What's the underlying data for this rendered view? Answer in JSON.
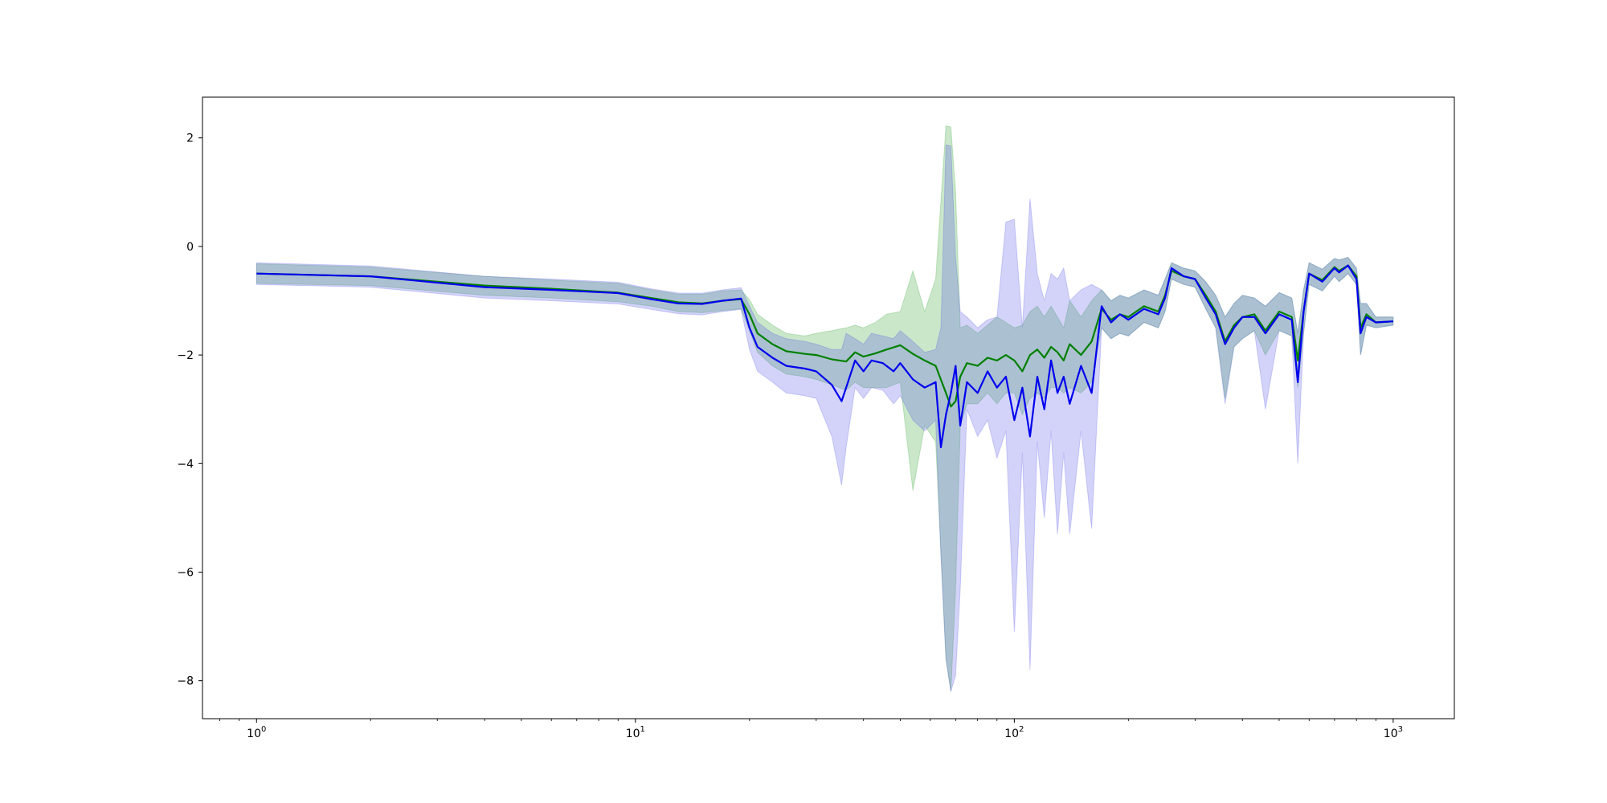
{
  "chart_data": {
    "type": "line",
    "title": "",
    "xlabel": "",
    "ylabel": "",
    "xscale": "log",
    "xlim": [
      0.72,
      1450
    ],
    "ylim": [
      -8.7,
      2.75
    ],
    "grid": false,
    "legend": "none",
    "xticks": [
      {
        "value": 1,
        "base": "10",
        "exp": "0"
      },
      {
        "value": 10,
        "base": "10",
        "exp": "1"
      },
      {
        "value": 100,
        "base": "10",
        "exp": "2"
      },
      {
        "value": 1000,
        "base": "10",
        "exp": "3"
      }
    ],
    "yticks": [
      {
        "value": 2,
        "label": "2"
      },
      {
        "value": 0,
        "label": "0"
      },
      {
        "value": -2,
        "label": "−2"
      },
      {
        "value": -4,
        "label": "−4"
      },
      {
        "value": -6,
        "label": "−6"
      },
      {
        "value": -8,
        "label": "−8"
      }
    ],
    "series": [
      {
        "color": "#008000",
        "band_color": "#2ca02c",
        "x": [
          1,
          2,
          4,
          6,
          9,
          11,
          13,
          15,
          17,
          19,
          20,
          21,
          23,
          25,
          28,
          30,
          33,
          36,
          38,
          40,
          43,
          46,
          50,
          54,
          58,
          62,
          66,
          68,
          70,
          72,
          75,
          80,
          85,
          90,
          95,
          100,
          105,
          110,
          115,
          120,
          125,
          130,
          135,
          140,
          150,
          160,
          170,
          180,
          190,
          200,
          220,
          240,
          250,
          260,
          280,
          300,
          320,
          340,
          360,
          380,
          400,
          430,
          460,
          500,
          540,
          560,
          580,
          600,
          650,
          700,
          720,
          760,
          800,
          820,
          850,
          900,
          1000
        ],
        "y": [
          -0.5,
          -0.55,
          -0.72,
          -0.78,
          -0.85,
          -0.95,
          -1.03,
          -1.05,
          -1.0,
          -0.97,
          -1.25,
          -1.6,
          -1.8,
          -1.93,
          -1.98,
          -2.0,
          -2.08,
          -2.12,
          -1.95,
          -2.03,
          -1.97,
          -1.9,
          -1.82,
          -1.98,
          -2.1,
          -2.2,
          -2.7,
          -2.95,
          -2.85,
          -2.4,
          -2.15,
          -2.2,
          -2.05,
          -2.1,
          -2.0,
          -2.1,
          -2.3,
          -2.0,
          -1.9,
          -2.05,
          -1.85,
          -1.95,
          -2.1,
          -1.8,
          -2.0,
          -1.75,
          -1.15,
          -1.35,
          -1.25,
          -1.3,
          -1.1,
          -1.2,
          -0.9,
          -0.45,
          -0.55,
          -0.6,
          -0.9,
          -1.2,
          -1.75,
          -1.45,
          -1.3,
          -1.25,
          -1.55,
          -1.2,
          -1.3,
          -2.1,
          -1.2,
          -0.5,
          -0.62,
          -0.38,
          -0.45,
          -0.35,
          -0.55,
          -1.5,
          -1.25,
          -1.4,
          -1.38
        ],
        "upper": [
          -0.32,
          -0.38,
          -0.55,
          -0.62,
          -0.68,
          -0.8,
          -0.88,
          -0.88,
          -0.82,
          -0.8,
          -0.98,
          -1.25,
          -1.45,
          -1.6,
          -1.65,
          -1.6,
          -1.55,
          -1.5,
          -1.45,
          -1.5,
          -1.4,
          -1.25,
          -1.2,
          -0.45,
          -1.2,
          -0.6,
          2.22,
          2.2,
          1.0,
          -1.5,
          -1.45,
          -1.6,
          -1.45,
          -1.3,
          -1.4,
          -1.5,
          -1.45,
          -1.2,
          -1.1,
          -1.3,
          -1.1,
          -1.3,
          -1.5,
          -1.0,
          -1.3,
          -1.0,
          -0.8,
          -1.0,
          -0.9,
          -0.95,
          -0.8,
          -0.9,
          -0.6,
          -0.3,
          -0.4,
          -0.45,
          -0.65,
          -0.9,
          -1.3,
          -1.05,
          -0.9,
          -0.95,
          -1.1,
          -0.85,
          -0.95,
          -1.6,
          -0.8,
          -0.3,
          -0.42,
          -0.22,
          -0.25,
          -0.2,
          -0.4,
          -1.05,
          -1.05,
          -1.3,
          -1.3
        ],
        "lower": [
          -0.68,
          -0.72,
          -0.9,
          -0.95,
          -1.02,
          -1.1,
          -1.2,
          -1.22,
          -1.18,
          -1.15,
          -1.55,
          -1.95,
          -2.2,
          -2.35,
          -2.4,
          -2.45,
          -2.55,
          -2.65,
          -2.5,
          -2.6,
          -2.6,
          -2.6,
          -2.5,
          -4.5,
          -3.3,
          -3.6,
          -7.6,
          -8.2,
          -6.3,
          -3.3,
          -2.9,
          -2.9,
          -2.7,
          -2.9,
          -2.7,
          -2.7,
          -3.1,
          -2.8,
          -2.7,
          -2.8,
          -2.6,
          -2.6,
          -2.7,
          -2.6,
          -2.7,
          -2.5,
          -1.5,
          -1.7,
          -1.6,
          -1.65,
          -1.4,
          -1.5,
          -1.2,
          -0.6,
          -0.7,
          -0.75,
          -1.15,
          -1.5,
          -2.8,
          -1.85,
          -1.7,
          -1.55,
          -2.0,
          -1.55,
          -1.65,
          -2.6,
          -1.6,
          -0.7,
          -0.82,
          -0.55,
          -0.65,
          -0.5,
          -0.7,
          -2.0,
          -1.45,
          -1.5,
          -1.45
        ]
      },
      {
        "color": "#0000ee",
        "band_color": "#5050e8",
        "x": [
          1,
          2,
          4,
          6,
          9,
          11,
          13,
          15,
          17,
          19,
          20,
          21,
          23,
          25,
          28,
          30,
          33,
          35,
          36,
          38,
          40,
          42,
          45,
          48,
          50,
          54,
          58,
          62,
          64,
          66,
          68,
          70,
          72,
          75,
          80,
          85,
          90,
          95,
          100,
          105,
          110,
          115,
          120,
          125,
          130,
          135,
          140,
          150,
          160,
          170,
          180,
          190,
          200,
          220,
          240,
          250,
          260,
          280,
          300,
          320,
          340,
          360,
          380,
          400,
          430,
          460,
          500,
          540,
          560,
          580,
          600,
          650,
          700,
          720,
          760,
          800,
          820,
          850,
          900,
          1000
        ],
        "y": [
          -0.5,
          -0.55,
          -0.75,
          -0.8,
          -0.86,
          -0.97,
          -1.05,
          -1.06,
          -1.0,
          -0.96,
          -1.5,
          -1.85,
          -2.05,
          -2.2,
          -2.25,
          -2.3,
          -2.55,
          -2.85,
          -2.6,
          -2.1,
          -2.3,
          -2.1,
          -2.15,
          -2.3,
          -2.15,
          -2.45,
          -2.6,
          -2.5,
          -3.7,
          -3.1,
          -2.7,
          -2.2,
          -3.3,
          -2.5,
          -2.7,
          -2.3,
          -2.6,
          -2.4,
          -3.2,
          -2.6,
          -3.5,
          -2.4,
          -3.0,
          -2.1,
          -2.7,
          -2.4,
          -2.9,
          -2.2,
          -2.7,
          -1.1,
          -1.4,
          -1.25,
          -1.35,
          -1.15,
          -1.25,
          -0.95,
          -0.4,
          -0.55,
          -0.6,
          -0.95,
          -1.25,
          -1.8,
          -1.5,
          -1.3,
          -1.3,
          -1.6,
          -1.25,
          -1.35,
          -2.5,
          -1.2,
          -0.5,
          -0.65,
          -0.4,
          -0.48,
          -0.35,
          -0.6,
          -1.6,
          -1.3,
          -1.4,
          -1.38
        ],
        "upper": [
          -0.3,
          -0.36,
          -0.55,
          -0.6,
          -0.66,
          -0.78,
          -0.86,
          -0.86,
          -0.8,
          -0.76,
          -1.1,
          -1.4,
          -1.6,
          -1.7,
          -1.75,
          -1.8,
          -1.9,
          -1.9,
          -1.6,
          -1.7,
          -1.8,
          -1.6,
          -1.65,
          -1.7,
          -1.55,
          -1.75,
          -1.95,
          -1.9,
          -1.5,
          1.87,
          1.85,
          -0.2,
          -1.2,
          -1.3,
          -1.5,
          -1.35,
          -1.3,
          0.45,
          0.5,
          -1.5,
          0.88,
          -0.5,
          -1.0,
          -0.5,
          -0.6,
          -0.4,
          -1.0,
          -0.8,
          -0.7,
          -0.8,
          -1.0,
          -0.9,
          -0.95,
          -0.8,
          -0.9,
          -0.6,
          -0.3,
          -0.4,
          -0.45,
          -0.65,
          -0.9,
          -1.3,
          -1.05,
          -0.9,
          -0.95,
          -1.1,
          -0.85,
          -0.95,
          -1.6,
          -0.8,
          -0.3,
          -0.42,
          -0.22,
          -0.25,
          -0.2,
          -0.4,
          -1.05,
          -1.05,
          -1.3,
          -1.3
        ],
        "lower": [
          -0.7,
          -0.75,
          -0.95,
          -1.0,
          -1.06,
          -1.16,
          -1.24,
          -1.26,
          -1.2,
          -1.16,
          -1.9,
          -2.3,
          -2.5,
          -2.7,
          -2.75,
          -2.8,
          -3.5,
          -4.4,
          -3.7,
          -2.6,
          -2.8,
          -2.6,
          -2.65,
          -2.9,
          -2.75,
          -3.2,
          -3.4,
          -3.2,
          -5.7,
          -7.6,
          -8.2,
          -7.9,
          -6.3,
          -3.0,
          -3.5,
          -3.2,
          -3.9,
          -3.4,
          -7.1,
          -3.8,
          -7.8,
          -3.6,
          -5.0,
          -3.4,
          -5.3,
          -3.8,
          -5.3,
          -3.4,
          -5.2,
          -1.5,
          -1.7,
          -1.6,
          -1.65,
          -1.4,
          -1.5,
          -1.2,
          -0.6,
          -0.7,
          -0.75,
          -1.15,
          -1.5,
          -2.9,
          -1.85,
          -1.7,
          -1.55,
          -3.0,
          -1.55,
          -1.65,
          -4.0,
          -1.6,
          -0.7,
          -0.82,
          -0.55,
          -0.65,
          -0.5,
          -0.7,
          -2.0,
          -1.45,
          -1.5,
          -1.45
        ]
      }
    ]
  }
}
